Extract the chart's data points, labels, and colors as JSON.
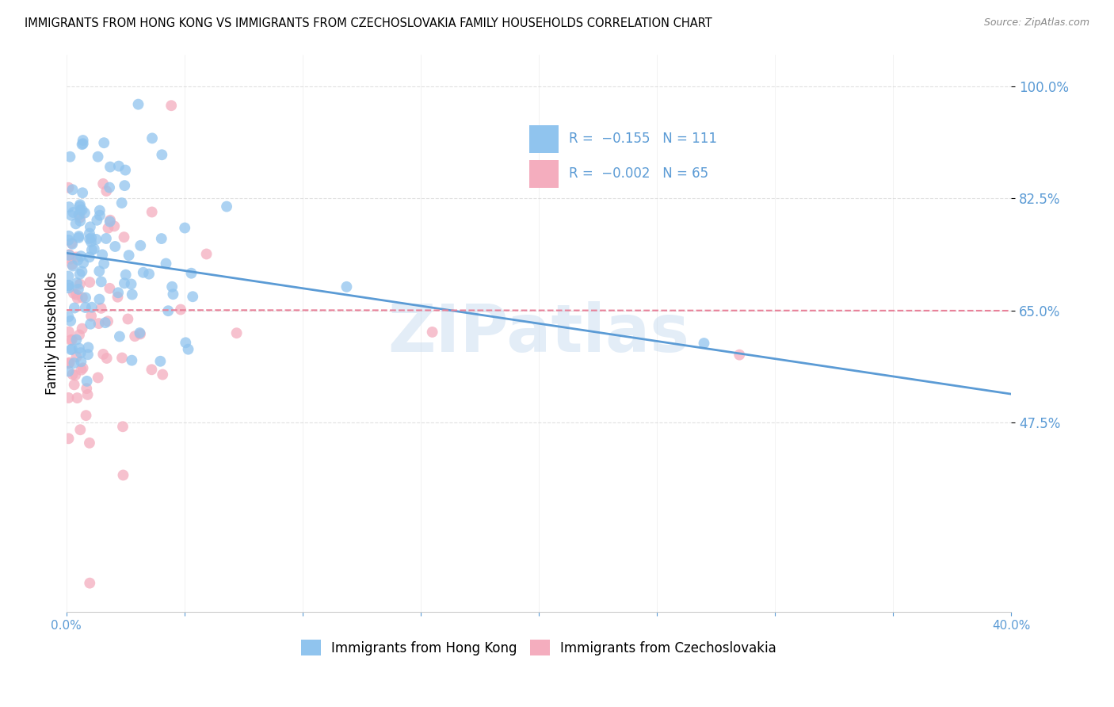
{
  "title": "IMMIGRANTS FROM HONG KONG VS IMMIGRANTS FROM CZECHOSLOVAKIA FAMILY HOUSEHOLDS CORRELATION CHART",
  "source": "Source: ZipAtlas.com",
  "ylabel": "Family Households",
  "y_ticks": [
    0.475,
    0.65,
    0.825,
    1.0
  ],
  "y_tick_labels": [
    "47.5%",
    "65.0%",
    "82.5%",
    "100.0%"
  ],
  "hk_color": "#90C4EE",
  "cs_color": "#F4ADBE",
  "hk_line_color": "#5B9BD5",
  "cs_line_color": "#E8829A",
  "legend_text_color": "#5B9BD5",
  "watermark": "ZIPatlas",
  "hk_R": -0.155,
  "hk_N": 111,
  "cs_R": -0.002,
  "cs_N": 65,
  "background_color": "#FFFFFF",
  "grid_color": "#CCCCCC",
  "hk_line_x0": 0.0,
  "hk_line_y0": 0.74,
  "hk_line_x1": 0.4,
  "hk_line_y1": 0.52,
  "cs_line_x0": 0.0,
  "cs_line_y0": 0.651,
  "cs_line_x1": 0.4,
  "cs_line_y1": 0.65,
  "xlim_min": 0.0,
  "xlim_max": 0.4,
  "ylim_min": 0.18,
  "ylim_max": 1.05
}
